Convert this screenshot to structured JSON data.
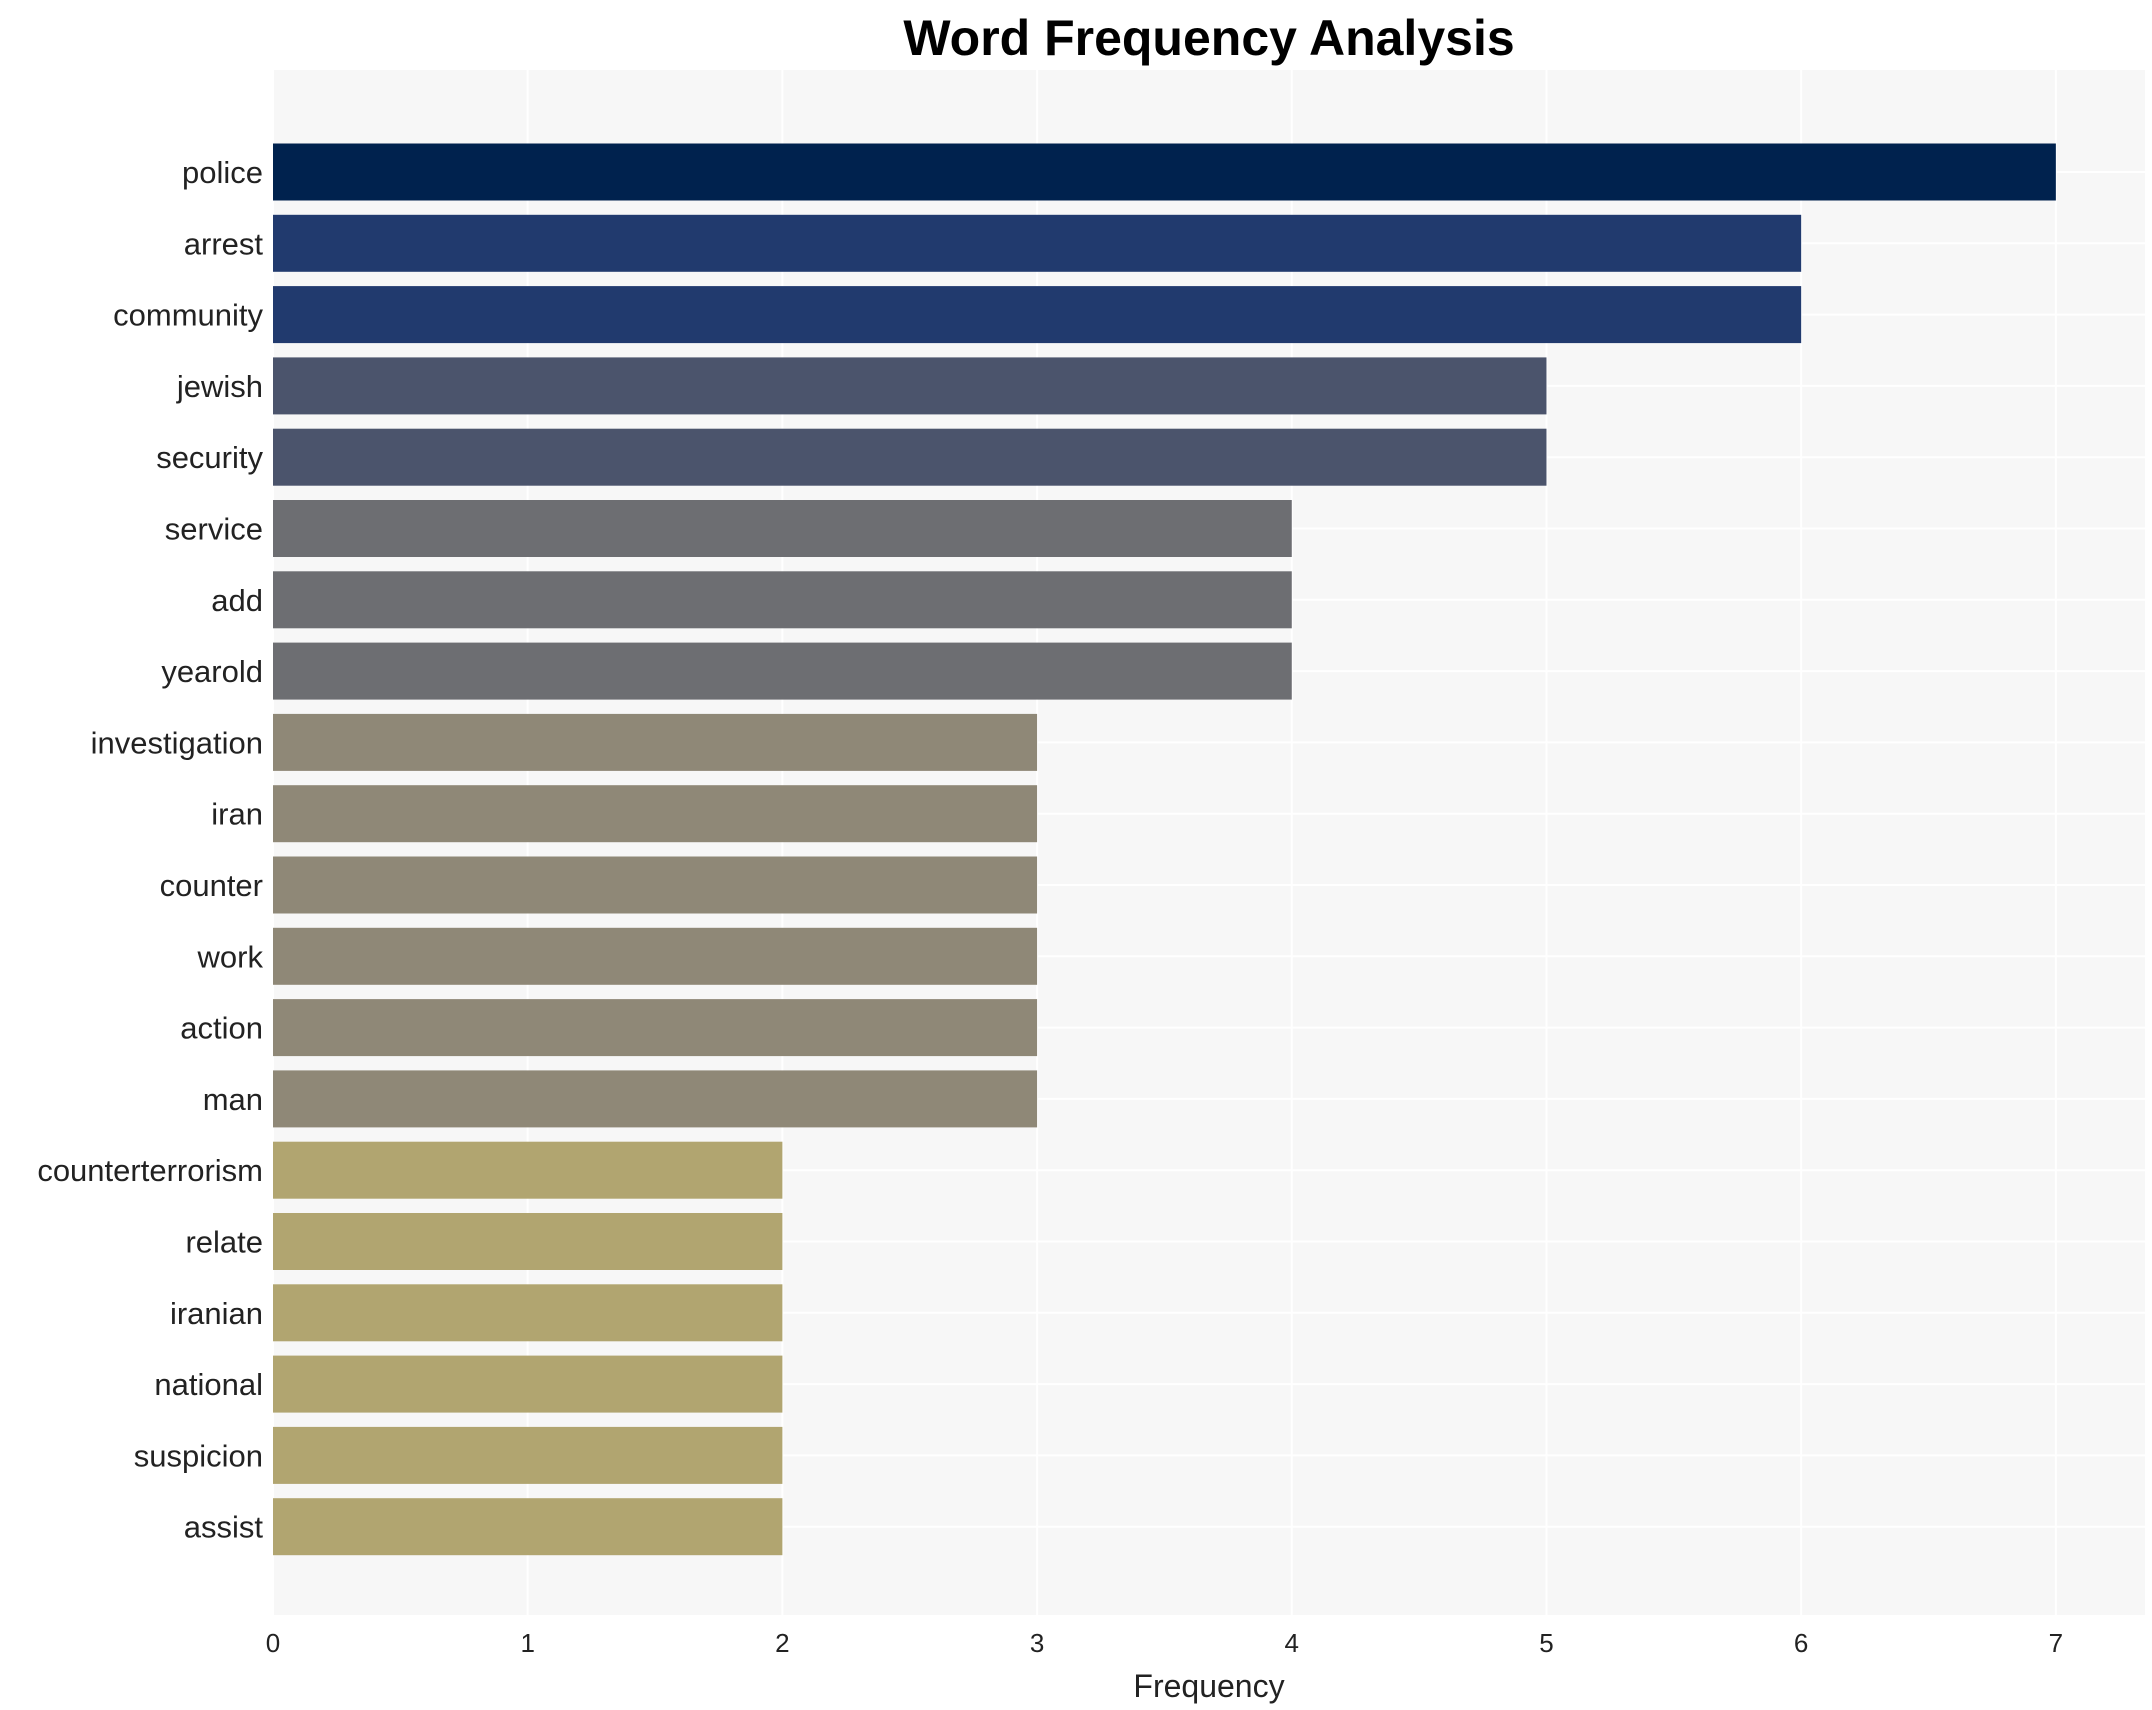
{
  "chart_data": {
    "type": "bar",
    "orientation": "horizontal",
    "title": "Word Frequency Analysis",
    "xlabel": "Frequency",
    "ylabel": "",
    "xlim": [
      0,
      7.35
    ],
    "xticks": [
      "0",
      "1",
      "2",
      "3",
      "4",
      "5",
      "6",
      "7"
    ],
    "grid": true,
    "categories": [
      "police",
      "arrest",
      "community",
      "jewish",
      "security",
      "service",
      "add",
      "yearold",
      "investigation",
      "iran",
      "counter",
      "work",
      "action",
      "man",
      "counterterrorism",
      "relate",
      "iranian",
      "national",
      "suspicion",
      "assist"
    ],
    "values": [
      7,
      6,
      6,
      5,
      5,
      4,
      4,
      4,
      3,
      3,
      3,
      3,
      3,
      3,
      2,
      2,
      2,
      2,
      2,
      2
    ],
    "colors": [
      "#00224e",
      "#213a6e",
      "#213a6e",
      "#4b546c",
      "#4b546c",
      "#6d6e72",
      "#6d6e72",
      "#6d6e72",
      "#8f8877",
      "#8f8877",
      "#8f8877",
      "#8f8877",
      "#8f8877",
      "#8f8877",
      "#b1a570",
      "#b1a570",
      "#b1a570",
      "#b1a570",
      "#b1a570",
      "#b1a570"
    ],
    "background": "#f7f7f7"
  }
}
